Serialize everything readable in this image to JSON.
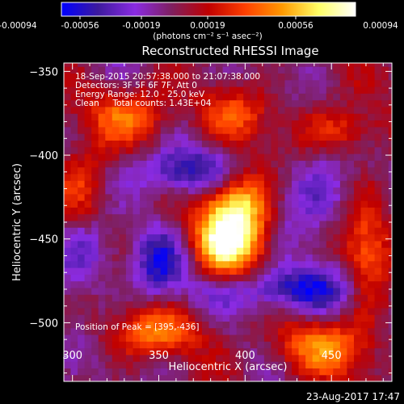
{
  "colorbar": {
    "ticks": [
      "-0.00094",
      "-0.00056",
      "-0.00019",
      "0.00019",
      "0.00056",
      "0.00094"
    ],
    "unit_label": "(photons cm⁻² s⁻¹ asec⁻²)",
    "colormap": [
      "#0000ff",
      "#3d1a9e",
      "#8a2be2",
      "#7f1f5f",
      "#c00000",
      "#ff4000",
      "#ff9900",
      "#ffff66",
      "#ffffff"
    ]
  },
  "title": "Reconstructed RHESSI Image",
  "annotations": {
    "time": "18-Sep-2015 20:57:38.000 to 21:07:38.000",
    "detectors": "Detectors: 3F 5F 6F 7F, Att 0",
    "energy": "Energy Range: 12.0 - 25.0 keV",
    "clean": "Clean     Total counts: 1.43E+04",
    "peak": "Position of Peak = [395,-436]"
  },
  "footer": {
    "date": "23-Aug-2017 17:47"
  },
  "chart_data": {
    "type": "heatmap",
    "title": "Reconstructed RHESSI Image",
    "xlabel": "Heliocentric X (arcsec)",
    "ylabel": "Heliocentric Y (arcsec)",
    "xlim": [
      295,
      485
    ],
    "ylim": [
      -535,
      -345
    ],
    "x_ticks": [
      300,
      350,
      400,
      450
    ],
    "y_ticks": [
      -350,
      -400,
      -450,
      -500
    ],
    "value_range": [
      -0.00094,
      0.00094
    ],
    "peak": {
      "x": 395,
      "y": -436,
      "value": 0.00094
    },
    "features": [
      {
        "x": 395,
        "y": -436,
        "sx": 14,
        "sy": 22,
        "amp": 1.0
      },
      {
        "x": 385,
        "y": -455,
        "sx": 10,
        "sy": 10,
        "amp": 0.35
      },
      {
        "x": 335,
        "y": -375,
        "sx": 18,
        "sy": 12,
        "amp": 0.45
      },
      {
        "x": 305,
        "y": -420,
        "sx": 12,
        "sy": 18,
        "amp": 0.35
      },
      {
        "x": 350,
        "y": -505,
        "sx": 20,
        "sy": 10,
        "amp": 0.45
      },
      {
        "x": 445,
        "y": -515,
        "sx": 22,
        "sy": 12,
        "amp": 0.45
      },
      {
        "x": 470,
        "y": -460,
        "sx": 10,
        "sy": 25,
        "amp": 0.45
      },
      {
        "x": 455,
        "y": -385,
        "sx": 18,
        "sy": 10,
        "amp": 0.35
      },
      {
        "x": 395,
        "y": -375,
        "sx": 16,
        "sy": 10,
        "amp": 0.3
      },
      {
        "x": 370,
        "y": -410,
        "sx": 25,
        "sy": 10,
        "amp": -0.55
      },
      {
        "x": 425,
        "y": -480,
        "sx": 28,
        "sy": 10,
        "amp": -0.55
      },
      {
        "x": 350,
        "y": -465,
        "sx": 10,
        "sy": 14,
        "amp": -0.45
      },
      {
        "x": 440,
        "y": -425,
        "sx": 16,
        "sy": 18,
        "amp": -0.3
      },
      {
        "x": 305,
        "y": -460,
        "sx": 12,
        "sy": 16,
        "amp": -0.35
      }
    ]
  }
}
